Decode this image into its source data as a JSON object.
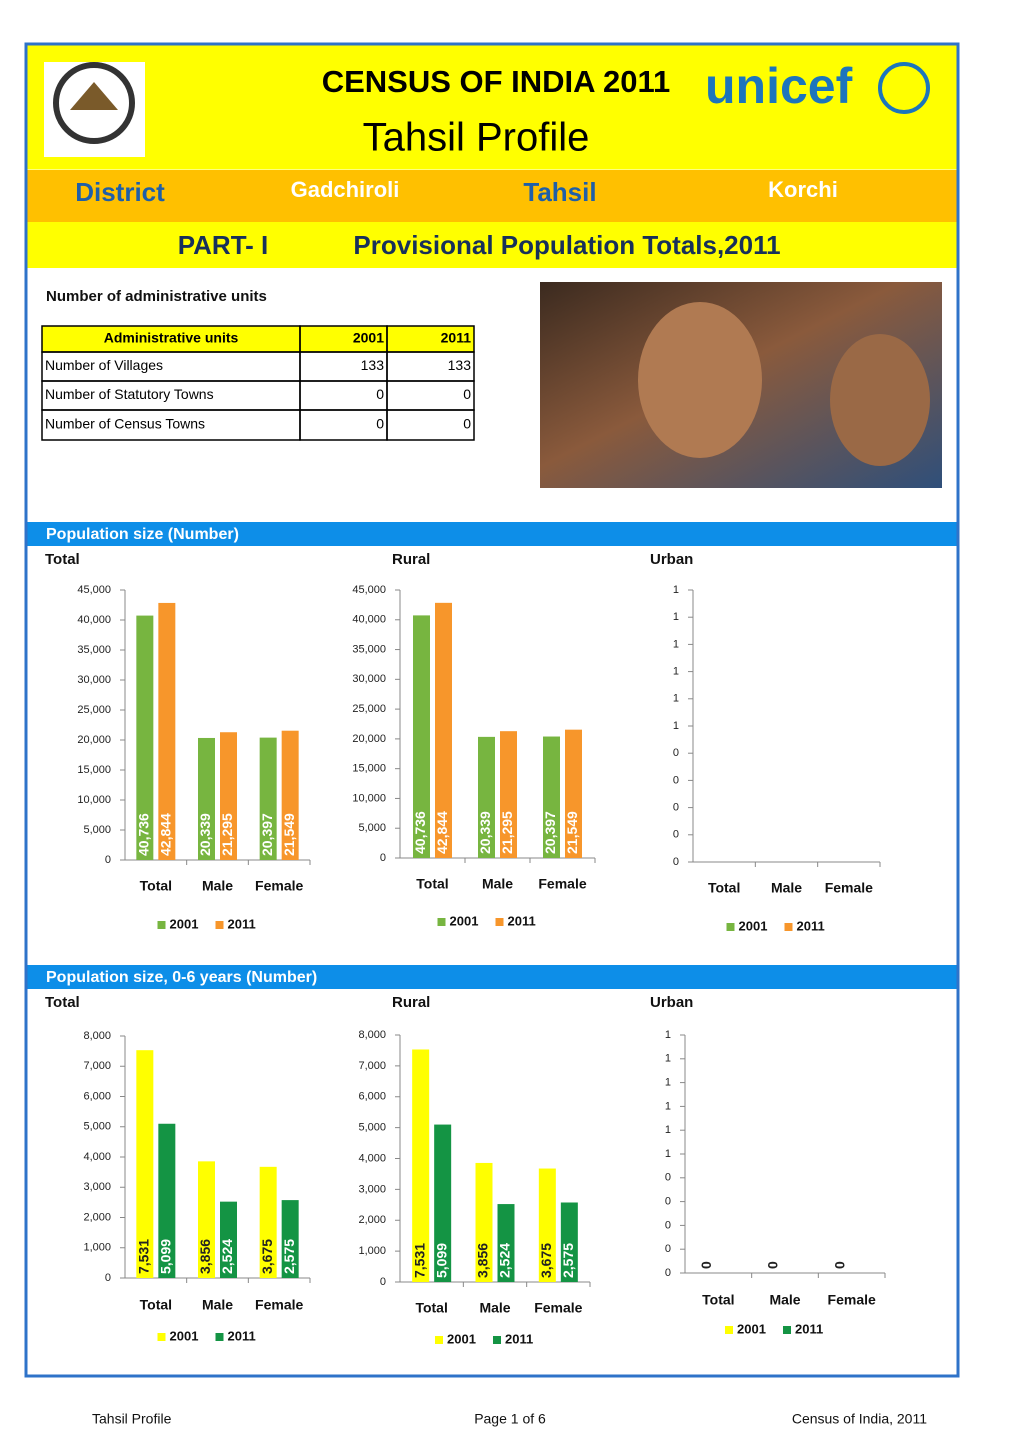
{
  "header": {
    "title": "CENSUS OF INDIA 2011",
    "subtitle": "Tahsil Profile",
    "logo_text": "unicef",
    "district_label": "District",
    "district": "Gadchiroli",
    "tahsil_label": "Tahsil",
    "tahsil": "Korchi",
    "part": "PART- I",
    "part_title": "Provisional Population Totals,2011"
  },
  "admin": {
    "title": "Number of administrative units",
    "table": {
      "header": [
        "Administrative units",
        "2001",
        "2011"
      ],
      "rows": [
        [
          "Number of Villages",
          133,
          133
        ],
        [
          "Number of Statutory Towns",
          0,
          0
        ],
        [
          "Number of Census Towns",
          0,
          0
        ]
      ]
    }
  },
  "sections": [
    {
      "title": "Population size (Number)"
    },
    {
      "title": "Population size, 0-6 years (Number)"
    }
  ],
  "chart_data": [
    {
      "type": "bar",
      "title": "Total",
      "categories": [
        "Total",
        "Male",
        "Female"
      ],
      "series": [
        {
          "name": "2001",
          "color": "#77b540",
          "label_color": "#ffffff",
          "data_labels": true,
          "values": [
            40736,
            20339,
            20397
          ],
          "value_labels": [
            "40,736",
            "20,339",
            "20,397"
          ]
        },
        {
          "name": "2011",
          "color": "#f7962b",
          "label_color": "#ffffff",
          "data_labels": true,
          "values": [
            42844,
            21295,
            21549
          ],
          "value_labels": [
            "42,844",
            "21,295",
            "21,549"
          ]
        }
      ],
      "ylim": [
        0,
        45000
      ],
      "yticks": [
        0,
        {
          "value": 5000,
          "label": "5,000"
        },
        {
          "value": 10000,
          "label": "10,000"
        },
        {
          "value": 15000,
          "label": "15,000"
        },
        {
          "value": 20000,
          "label": "20,000"
        },
        {
          "value": 25000,
          "label": "25,000"
        },
        {
          "value": 30000,
          "label": "30,000"
        },
        {
          "value": 35000,
          "label": "35,000"
        },
        {
          "value": 40000,
          "label": "40,000"
        },
        {
          "value": 45000,
          "label": "45,000"
        }
      ]
    },
    {
      "type": "bar",
      "title": "Rural",
      "categories": [
        "Total",
        "Male",
        "Female"
      ],
      "series": [
        {
          "name": "2001",
          "color": "#77b540",
          "label_color": "#ffffff",
          "data_labels": true,
          "values": [
            40736,
            20339,
            20397
          ],
          "value_labels": [
            "40,736",
            "20,339",
            "20,397"
          ]
        },
        {
          "name": "2011",
          "color": "#f7962b",
          "label_color": "#ffffff",
          "data_labels": true,
          "values": [
            42844,
            21295,
            21549
          ],
          "value_labels": [
            "42,844",
            "21,295",
            "21,549"
          ]
        }
      ],
      "ylim": [
        0,
        45000
      ],
      "yticks": [
        0,
        {
          "value": 5000,
          "label": "5,000"
        },
        {
          "value": 10000,
          "label": "10,000"
        },
        {
          "value": 15000,
          "label": "15,000"
        },
        {
          "value": 20000,
          "label": "20,000"
        },
        {
          "value": 25000,
          "label": "25,000"
        },
        {
          "value": 30000,
          "label": "30,000"
        },
        {
          "value": 35000,
          "label": "35,000"
        },
        {
          "value": 40000,
          "label": "40,000"
        },
        {
          "value": 45000,
          "label": "45,000"
        }
      ]
    },
    {
      "type": "bar",
      "title": "Urban",
      "categories": [
        "Total",
        "Male",
        "Female"
      ],
      "series": [
        {
          "name": "2001",
          "color": "#77b540",
          "label_color": "#222222",
          "data_labels": false,
          "values": [
            0,
            0,
            0
          ]
        },
        {
          "name": "2011",
          "color": "#f7962b",
          "label_color": "#222222",
          "data_labels": false,
          "values": [
            0,
            0,
            0
          ]
        }
      ],
      "ylim": [
        0,
        1
      ],
      "yticks": [
        0,
        {
          "value": 0.1,
          "label": "0"
        },
        {
          "value": 0.2,
          "label": "0"
        },
        {
          "value": 0.3,
          "label": "0"
        },
        {
          "value": 0.4,
          "label": "0"
        },
        {
          "value": 0.5,
          "label": "1"
        },
        {
          "value": 0.6,
          "label": "1"
        },
        {
          "value": 0.7,
          "label": "1"
        },
        {
          "value": 0.8,
          "label": "1"
        },
        {
          "value": 0.9,
          "label": "1"
        },
        1
      ]
    },
    {
      "type": "bar",
      "title": "Total",
      "categories": [
        "Total",
        "Male",
        "Female"
      ],
      "series": [
        {
          "name": "2001",
          "color": "#ffff00",
          "label_color": "#222222",
          "data_labels": true,
          "values": [
            7531,
            3856,
            3675
          ],
          "value_labels": [
            "7,531",
            "3,856",
            "3,675"
          ]
        },
        {
          "name": "2011",
          "color": "#149444",
          "label_color": "#ffffff",
          "data_labels": true,
          "values": [
            5099,
            2524,
            2575
          ],
          "value_labels": [
            "5,099",
            "2,524",
            "2,575"
          ]
        }
      ],
      "ylim": [
        0,
        8000
      ],
      "yticks": [
        0,
        {
          "value": 1000,
          "label": "1,000"
        },
        {
          "value": 2000,
          "label": "2,000"
        },
        {
          "value": 3000,
          "label": "3,000"
        },
        {
          "value": 4000,
          "label": "4,000"
        },
        {
          "value": 5000,
          "label": "5,000"
        },
        {
          "value": 6000,
          "label": "6,000"
        },
        {
          "value": 7000,
          "label": "7,000"
        },
        {
          "value": 8000,
          "label": "8,000"
        }
      ]
    },
    {
      "type": "bar",
      "title": "Rural",
      "categories": [
        "Total",
        "Male",
        "Female"
      ],
      "series": [
        {
          "name": "2001",
          "color": "#ffff00",
          "label_color": "#222222",
          "data_labels": true,
          "values": [
            7531,
            3856,
            3675
          ],
          "value_labels": [
            "7,531",
            "3,856",
            "3,675"
          ]
        },
        {
          "name": "2011",
          "color": "#149444",
          "label_color": "#ffffff",
          "data_labels": true,
          "values": [
            5099,
            2524,
            2575
          ],
          "value_labels": [
            "5,099",
            "2,524",
            "2,575"
          ]
        }
      ],
      "ylim": [
        0,
        8000
      ],
      "yticks": [
        0,
        {
          "value": 1000,
          "label": "1,000"
        },
        {
          "value": 2000,
          "label": "2,000"
        },
        {
          "value": 3000,
          "label": "3,000"
        },
        {
          "value": 4000,
          "label": "4,000"
        },
        {
          "value": 5000,
          "label": "5,000"
        },
        {
          "value": 6000,
          "label": "6,000"
        },
        {
          "value": 7000,
          "label": "7,000"
        },
        {
          "value": 8000,
          "label": "8,000"
        }
      ]
    },
    {
      "type": "bar",
      "title": "Urban",
      "categories": [
        "Total",
        "Male",
        "Female"
      ],
      "series": [
        {
          "name": "2001",
          "color": "#ffff00",
          "label_color": "#222222",
          "data_labels": true,
          "values": [
            0,
            0,
            0
          ]
        },
        {
          "name": "2011",
          "color": "#149444",
          "label_color": "#222222",
          "data_labels": false,
          "values": [
            0,
            0,
            0
          ]
        }
      ],
      "ylim": [
        0,
        1
      ],
      "yticks": [
        0,
        {
          "value": 0.1,
          "label": "0"
        },
        {
          "value": 0.2,
          "label": "0"
        },
        {
          "value": 0.3,
          "label": "0"
        },
        {
          "value": 0.4,
          "label": "0"
        },
        {
          "value": 0.5,
          "label": "1"
        },
        {
          "value": 0.6,
          "label": "1"
        },
        {
          "value": 0.7,
          "label": "1"
        },
        {
          "value": 0.8,
          "label": "1"
        },
        {
          "value": 0.9,
          "label": "1"
        },
        1
      ]
    }
  ],
  "footer": {
    "left": "Tahsil Profile",
    "center": "Page 1 of 6",
    "right": "Census of India, 2011"
  }
}
